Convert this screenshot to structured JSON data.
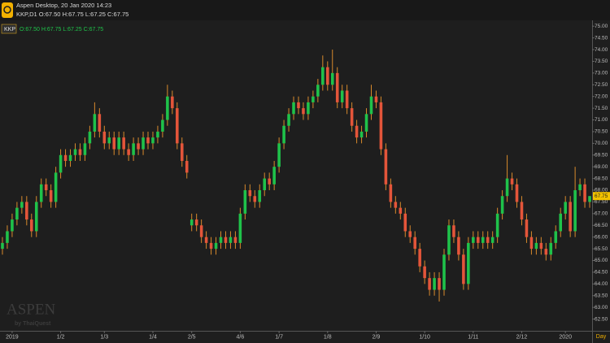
{
  "chart_data": {
    "type": "candlestick",
    "title": "Aspen Desktop, 20 Jan 2020 14:23",
    "subtitle": "KKP,D1 O:67.50 H:67.75 L:67.25 C:67.75",
    "legend_symbol": "KKP",
    "legend_ohlc": "O:67.50 H:67.75 L:67.25 C:67.75",
    "watermark": "ASPEN",
    "watermark_sub": "by ThaiQuest",
    "x_unit_label": "Day",
    "last_price": {
      "value": 67.75,
      "label": "67.75"
    },
    "up_color": "#1fc24a",
    "down_color": "#e4553a",
    "wick_color": "#d88a2c",
    "grid": false,
    "xlim": [
      -0.5,
      121.5
    ],
    "xticks": [
      {
        "value": 2,
        "label": "2019"
      },
      {
        "value": 12,
        "label": "1/2"
      },
      {
        "value": 21,
        "label": "1/3"
      },
      {
        "value": 31,
        "label": "1/4"
      },
      {
        "value": 39,
        "label": "2/5"
      },
      {
        "value": 49,
        "label": "4/6"
      },
      {
        "value": 57,
        "label": "1/7"
      },
      {
        "value": 67,
        "label": "1/8"
      },
      {
        "value": 77,
        "label": "2/9"
      },
      {
        "value": 87,
        "label": "1/10"
      },
      {
        "value": 97,
        "label": "1/11"
      },
      {
        "value": 107,
        "label": "2/12"
      },
      {
        "value": 116,
        "label": "2020"
      }
    ],
    "ylim": [
      62.0,
      75.25
    ],
    "yticks": [
      {
        "value": 62.5,
        "label": "62.50"
      },
      {
        "value": 63,
        "label": "63.00"
      },
      {
        "value": 63.5,
        "label": "63.50"
      },
      {
        "value": 64,
        "label": "64.00"
      },
      {
        "value": 64.5,
        "label": "64.50"
      },
      {
        "value": 65,
        "label": "65.00"
      },
      {
        "value": 65.5,
        "label": "65.50"
      },
      {
        "value": 66,
        "label": "66.00"
      },
      {
        "value": 66.5,
        "label": "66.50"
      },
      {
        "value": 67,
        "label": "67.00"
      },
      {
        "value": 67.5,
        "label": "67.50"
      },
      {
        "value": 68,
        "label": "68.00"
      },
      {
        "value": 68.5,
        "label": "68.50"
      },
      {
        "value": 69,
        "label": "69.00"
      },
      {
        "value": 69.5,
        "label": "69.50"
      },
      {
        "value": 70,
        "label": "70.00"
      },
      {
        "value": 70.5,
        "label": "70.50"
      },
      {
        "value": 71,
        "label": "71.00"
      },
      {
        "value": 71.5,
        "label": "71.50"
      },
      {
        "value": 72,
        "label": "72.00"
      },
      {
        "value": 72.5,
        "label": "72.50"
      },
      {
        "value": 73,
        "label": "73.00"
      },
      {
        "value": 73.5,
        "label": "73.50"
      },
      {
        "value": 74,
        "label": "74.00"
      },
      {
        "value": 74.5,
        "label": "74.50"
      },
      {
        "value": 75,
        "label": "75.00"
      }
    ],
    "open": [
      65.5,
      65.75,
      66.25,
      66.75,
      67.25,
      67.5,
      66.75,
      66.25,
      67.5,
      68.25,
      68.0,
      67.5,
      68.75,
      69.5,
      69.25,
      69.5,
      69.75,
      69.5,
      70.0,
      70.5,
      71.25,
      70.5,
      70.0,
      70.25,
      69.75,
      70.25,
      69.75,
      69.5,
      70.0,
      69.75,
      70.25,
      70.0,
      70.25,
      70.5,
      71.0,
      72.0,
      71.5,
      70.0,
      69.25,
      66.5,
      66.75,
      66.5,
      66.0,
      65.75,
      65.5,
      65.75,
      66.0,
      65.75,
      66.0,
      65.75,
      67.0,
      68.0,
      67.75,
      67.5,
      68.0,
      68.5,
      68.25,
      69.0,
      70.0,
      70.75,
      71.25,
      71.75,
      71.5,
      71.25,
      71.75,
      72.0,
      72.5,
      73.25,
      72.5,
      73.0,
      71.75,
      72.25,
      71.5,
      70.75,
      70.25,
      70.5,
      71.25,
      72.0,
      71.75,
      69.75,
      68.25,
      67.5,
      67.25,
      67.0,
      66.25,
      66.0,
      65.5,
      64.75,
      64.25,
      63.75,
      64.25,
      63.75,
      65.25,
      66.5,
      66.0,
      65.25,
      64.0,
      65.75,
      66.0,
      65.75,
      66.0,
      65.75,
      66.0,
      67.0,
      67.75,
      68.5,
      68.25,
      67.5,
      66.75,
      66.0,
      65.5,
      65.75,
      65.5,
      65.25,
      65.75,
      66.25,
      67.0,
      67.5,
      66.25,
      68.0,
      68.25,
      67.5
    ],
    "high": [
      66.0,
      66.5,
      67.0,
      67.5,
      67.75,
      67.75,
      67.0,
      67.75,
      68.5,
      68.5,
      68.25,
      69.0,
      69.75,
      69.75,
      69.75,
      70.0,
      70.0,
      70.25,
      70.75,
      71.75,
      71.5,
      70.75,
      70.5,
      70.5,
      70.5,
      70.5,
      70.0,
      70.25,
      70.25,
      70.5,
      70.5,
      70.5,
      70.75,
      71.25,
      72.5,
      72.25,
      71.75,
      70.25,
      69.5,
      67.0,
      67.0,
      66.75,
      66.25,
      66.0,
      66.0,
      66.25,
      66.25,
      66.25,
      66.25,
      67.25,
      68.25,
      68.25,
      68.0,
      68.25,
      68.75,
      68.75,
      69.25,
      70.25,
      71.0,
      71.5,
      72.0,
      72.0,
      71.75,
      72.0,
      72.25,
      72.75,
      73.75,
      73.5,
      74.0,
      73.25,
      72.5,
      72.5,
      71.75,
      71.0,
      70.75,
      71.5,
      72.5,
      72.25,
      72.0,
      70.0,
      68.5,
      67.75,
      67.5,
      67.25,
      66.5,
      66.25,
      65.75,
      65.0,
      64.5,
      64.5,
      64.5,
      65.5,
      66.75,
      66.75,
      66.25,
      65.5,
      66.0,
      66.25,
      66.25,
      66.25,
      66.25,
      66.25,
      67.25,
      68.0,
      69.5,
      68.75,
      68.5,
      67.75,
      67.0,
      66.25,
      66.0,
      66.0,
      65.75,
      66.0,
      66.5,
      67.25,
      67.75,
      67.75,
      69.0,
      68.5,
      68.5,
      67.75
    ],
    "low": [
      65.25,
      65.5,
      66.0,
      66.5,
      67.0,
      66.5,
      66.0,
      66.0,
      67.25,
      67.75,
      67.25,
      67.25,
      68.5,
      69.0,
      69.0,
      69.25,
      69.25,
      69.25,
      69.75,
      70.25,
      70.25,
      69.75,
      69.75,
      69.5,
      69.5,
      69.5,
      69.25,
      69.25,
      69.5,
      69.5,
      69.75,
      69.75,
      70.0,
      70.25,
      70.75,
      71.25,
      69.75,
      69.0,
      68.5,
      66.25,
      66.25,
      65.75,
      65.5,
      65.25,
      65.25,
      65.5,
      65.5,
      65.5,
      65.5,
      65.5,
      66.75,
      67.5,
      67.25,
      67.25,
      67.75,
      68.0,
      68.0,
      68.75,
      69.75,
      70.5,
      71.0,
      71.25,
      71.0,
      71.0,
      71.5,
      71.75,
      72.25,
      72.25,
      72.25,
      71.5,
      71.5,
      71.25,
      70.5,
      70.0,
      70.0,
      70.25,
      71.0,
      71.5,
      69.5,
      68.0,
      67.25,
      67.0,
      66.75,
      66.0,
      65.75,
      65.25,
      64.5,
      64.0,
      63.5,
      63.5,
      63.25,
      63.5,
      65.0,
      65.75,
      65.0,
      63.75,
      63.75,
      65.5,
      65.5,
      65.5,
      65.5,
      65.5,
      65.75,
      66.75,
      67.5,
      68.0,
      67.25,
      66.5,
      65.75,
      65.25,
      65.25,
      65.25,
      65.0,
      65.0,
      65.5,
      66.0,
      66.75,
      66.0,
      66.0,
      67.75,
      67.25,
      67.25
    ],
    "close": [
      65.75,
      66.25,
      66.75,
      67.25,
      67.5,
      66.75,
      66.25,
      67.5,
      68.25,
      68.0,
      67.5,
      68.75,
      69.5,
      69.25,
      69.5,
      69.75,
      69.5,
      70.0,
      70.5,
      71.25,
      70.5,
      70.0,
      70.25,
      69.75,
      70.25,
      69.75,
      69.5,
      70.0,
      69.75,
      70.25,
      70.0,
      70.25,
      70.5,
      71.0,
      72.0,
      71.5,
      70.0,
      69.25,
      68.75,
      66.75,
      66.5,
      66.0,
      65.75,
      65.5,
      65.75,
      66.0,
      65.75,
      66.0,
      65.75,
      67.0,
      68.0,
      67.75,
      67.5,
      68.0,
      68.5,
      68.25,
      69.0,
      70.0,
      70.75,
      71.25,
      71.75,
      71.5,
      71.25,
      71.75,
      72.0,
      72.5,
      73.25,
      72.5,
      73.0,
      71.75,
      72.25,
      71.5,
      70.75,
      70.25,
      70.5,
      71.25,
      72.0,
      71.75,
      69.75,
      68.25,
      67.5,
      67.25,
      67.0,
      66.25,
      66.0,
      65.5,
      64.75,
      64.25,
      63.75,
      64.25,
      63.75,
      65.25,
      66.5,
      66.0,
      65.25,
      64.0,
      65.75,
      66.0,
      65.75,
      66.0,
      65.75,
      66.0,
      67.0,
      67.75,
      68.5,
      68.25,
      67.5,
      66.75,
      66.0,
      65.5,
      65.75,
      65.5,
      65.25,
      65.75,
      66.25,
      67.0,
      67.5,
      66.25,
      68.0,
      68.25,
      67.5,
      67.75
    ]
  }
}
